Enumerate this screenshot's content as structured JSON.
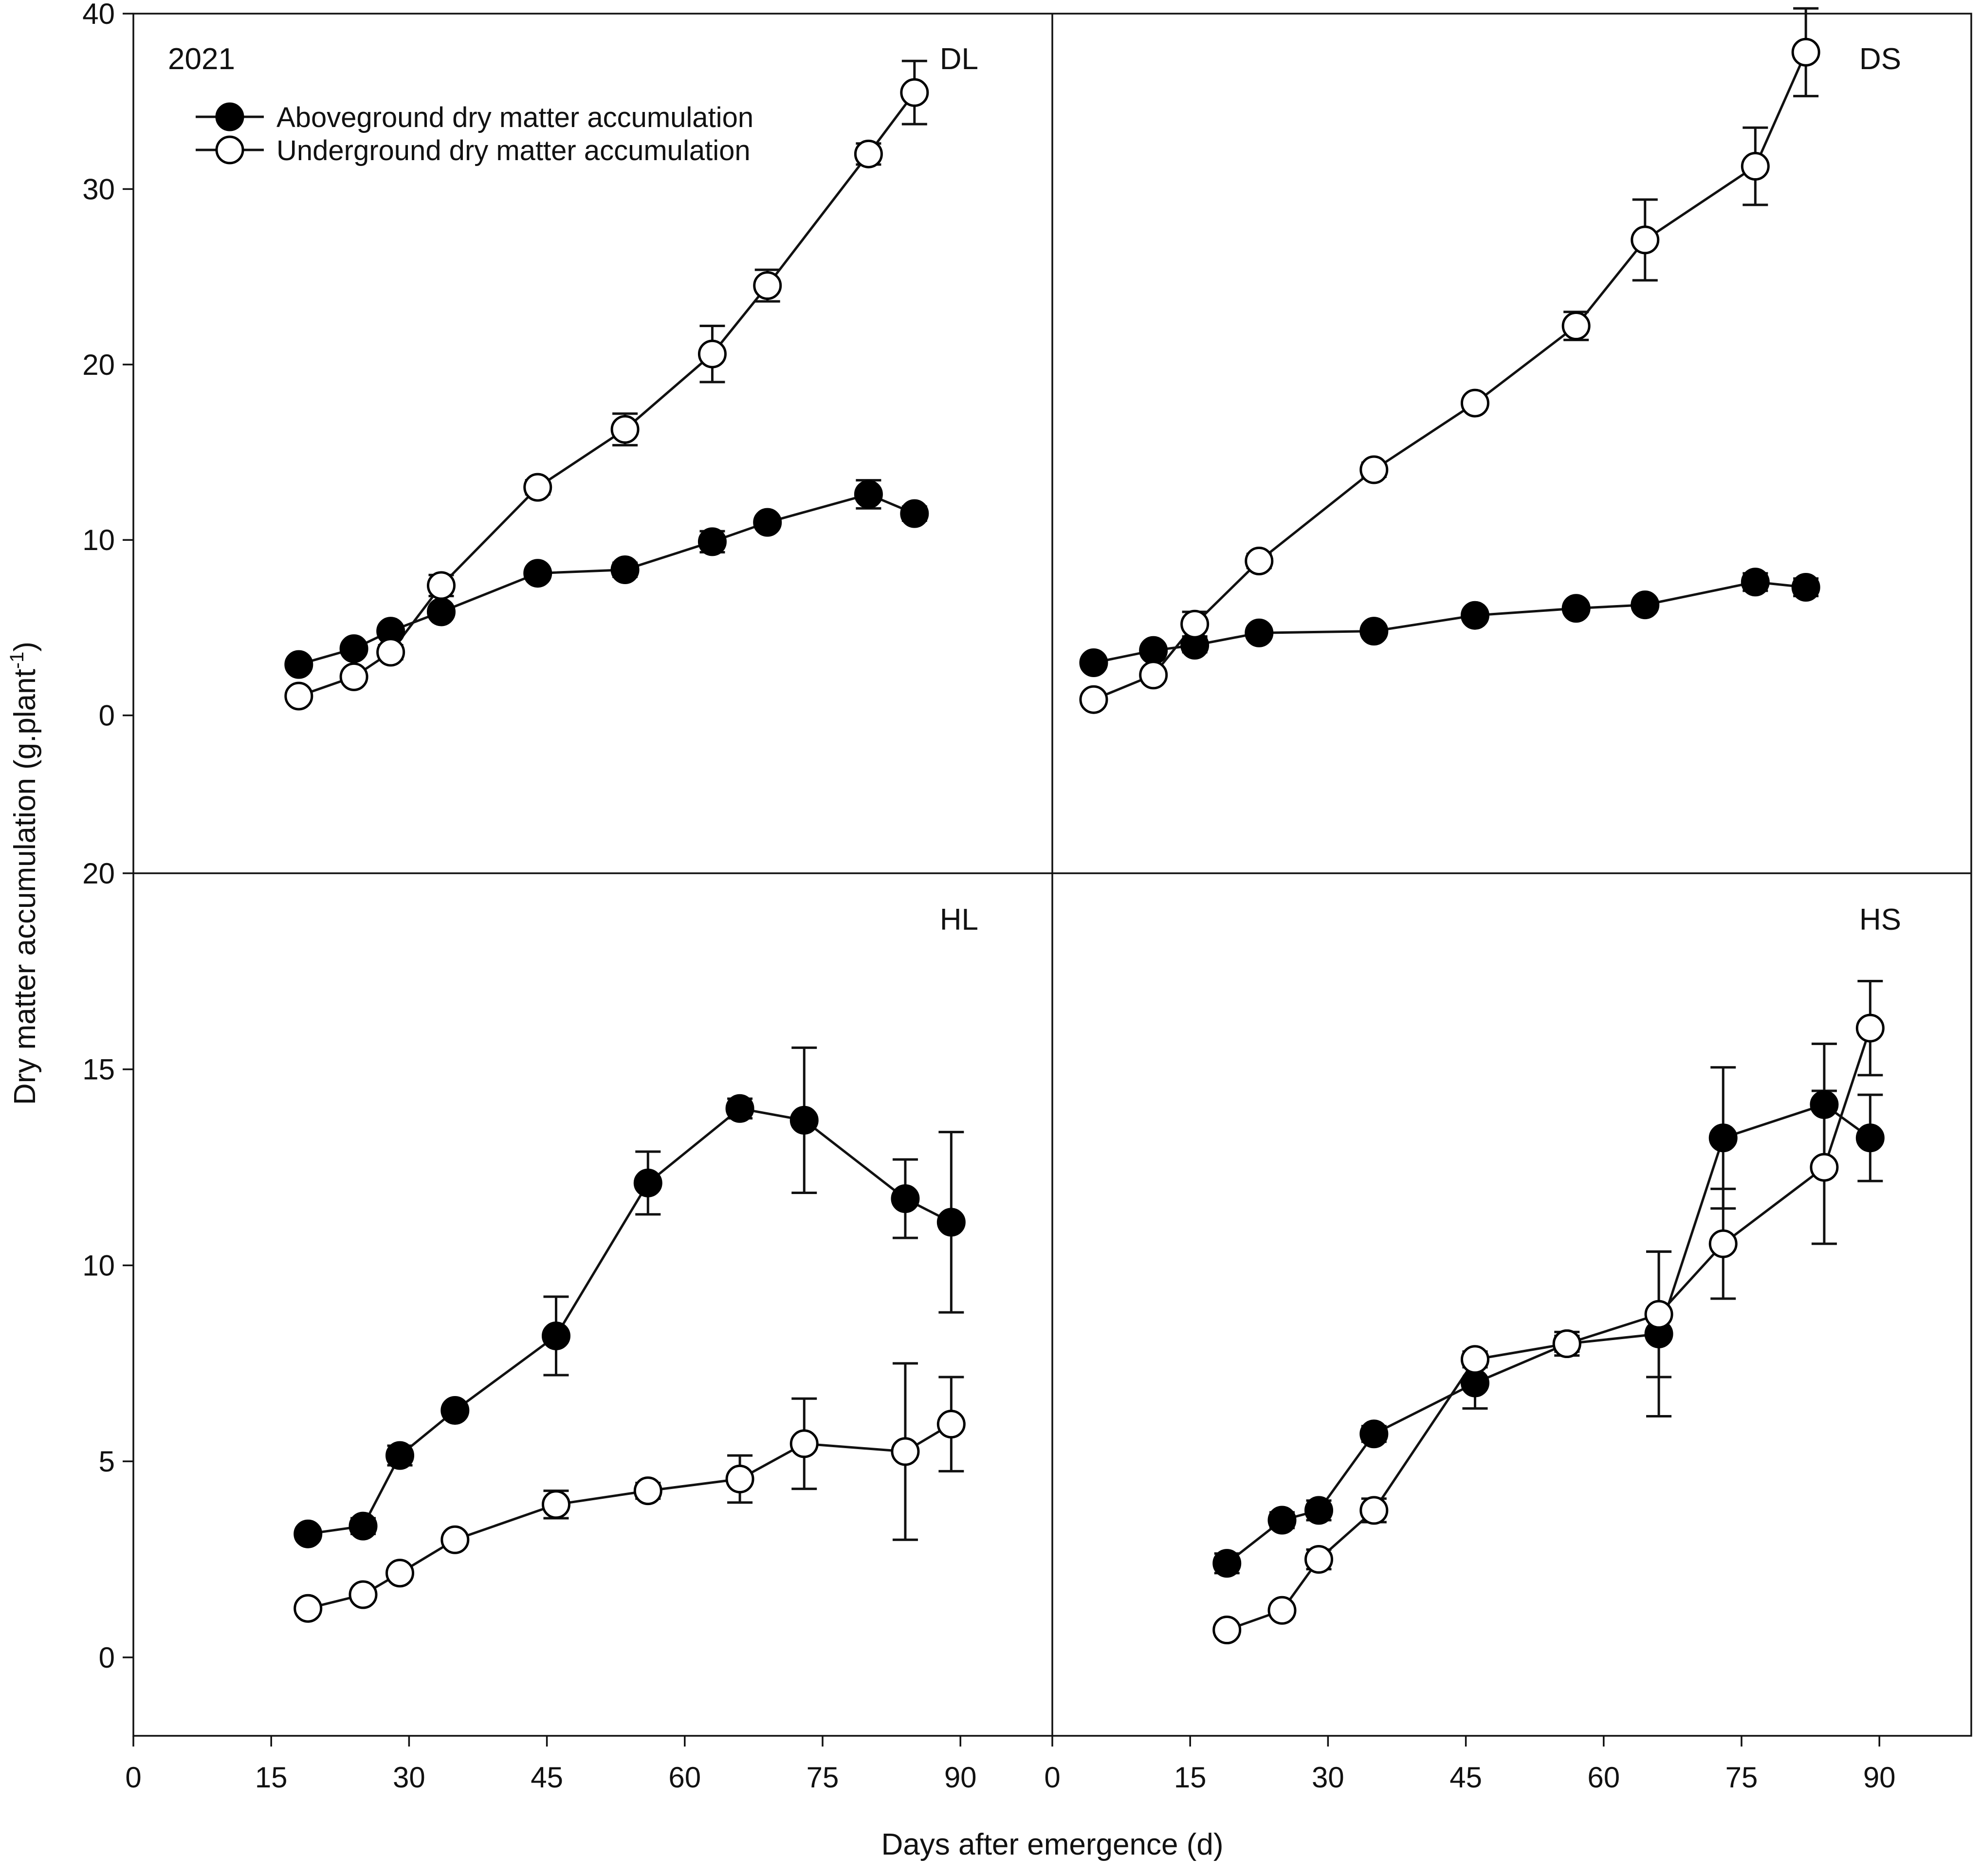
{
  "chart_data": {
    "type": "line",
    "year_label": "2021",
    "xlabel": "Days after emergence (d)",
    "ylabel_main": "Dry matter accumulation (g.plant",
    "ylabel_sup": "-1",
    "ylabel_close": ")",
    "xlim": [
      0,
      100
    ],
    "xticks": [
      0,
      15,
      30,
      45,
      60,
      75,
      90
    ],
    "legend": {
      "position": "top-left",
      "entries": [
        {
          "name": "Aboveground dry matter accumulation",
          "marker": "filled-circle"
        },
        {
          "name": "Underground dry matter accumulation",
          "marker": "open-circle"
        }
      ]
    },
    "panels": [
      {
        "id": "DL",
        "label": "DL",
        "row": "top",
        "col": "left",
        "ylim": [
          -9,
          40
        ],
        "yticks": [
          0,
          10,
          20,
          30,
          40
        ],
        "series": [
          {
            "name": "Aboveground dry matter accumulation",
            "marker": "filled",
            "x": [
              18,
              24,
              28,
              33.5,
              44,
              53.5,
              63,
              69,
              80,
              85
            ],
            "y": [
              2.9,
              3.8,
              4.8,
              5.9,
              8.1,
              8.3,
              9.9,
              11.0,
              12.6,
              11.5
            ],
            "err": [
              0.3,
              0.3,
              0.3,
              0.3,
              0.3,
              0.4,
              0.6,
              0.3,
              0.8,
              0.4
            ]
          },
          {
            "name": "Underground dry matter accumulation",
            "marker": "open",
            "x": [
              18,
              24,
              28,
              33.5,
              44,
              53.5,
              63,
              69,
              80,
              85
            ],
            "y": [
              1.1,
              2.2,
              3.6,
              7.4,
              13.0,
              16.3,
              20.6,
              24.5,
              32.0,
              35.5
            ],
            "err": [
              0.3,
              0.3,
              0.4,
              0.6,
              0.4,
              0.9,
              1.6,
              0.9,
              0.6,
              1.8
            ]
          }
        ]
      },
      {
        "id": "DS",
        "label": "DS",
        "row": "top",
        "col": "right",
        "ylim": [
          -9,
          40
        ],
        "yticks": [
          0,
          10,
          20,
          30,
          40
        ],
        "series": [
          {
            "name": "Aboveground dry matter accumulation",
            "marker": "filled",
            "x": [
              4.5,
              11,
              15.5,
              22.5,
              35,
              46,
              57,
              64.5,
              76.5,
              82
            ],
            "y": [
              3.0,
              3.7,
              4.0,
              4.7,
              4.8,
              5.7,
              6.1,
              6.3,
              7.6,
              7.3
            ],
            "err": [
              0.3,
              0.3,
              0.4,
              0.3,
              0.3,
              0.3,
              0.3,
              0.3,
              0.5,
              0.5
            ]
          },
          {
            "name": "Underground dry matter accumulation",
            "marker": "open",
            "x": [
              4.5,
              11,
              15.5,
              22.5,
              35,
              46,
              57,
              64.5,
              76.5,
              82
            ],
            "y": [
              0.9,
              2.3,
              5.2,
              8.8,
              14.0,
              17.8,
              22.2,
              27.1,
              31.3,
              37.8
            ],
            "err": [
              0.2,
              0.3,
              0.7,
              0.4,
              0.4,
              0.3,
              0.8,
              2.3,
              2.2,
              2.5
            ]
          }
        ]
      },
      {
        "id": "HL",
        "label": "HL",
        "row": "bottom",
        "col": "left",
        "ylim": [
          -2,
          20
        ],
        "yticks": [
          0,
          5,
          10,
          15,
          20
        ],
        "series": [
          {
            "name": "Aboveground dry matter accumulation",
            "marker": "filled",
            "x": [
              19,
              25,
              29,
              35,
              46,
              56,
              66,
              73,
              84,
              89
            ],
            "y": [
              3.15,
              3.35,
              5.15,
              6.3,
              8.2,
              12.1,
              14.0,
              13.7,
              11.7,
              11.1
            ],
            "err": [
              0.15,
              0.2,
              0.25,
              0.15,
              1.0,
              0.8,
              0.25,
              1.85,
              1.0,
              2.3
            ]
          },
          {
            "name": "Underground dry matter accumulation",
            "marker": "open",
            "x": [
              19,
              25,
              29,
              35,
              46,
              56,
              66,
              73,
              84,
              89
            ],
            "y": [
              1.25,
              1.6,
              2.15,
              3.0,
              3.9,
              4.25,
              4.55,
              5.45,
              5.25,
              5.95
            ],
            "err": [
              0.1,
              0.1,
              0.15,
              0.15,
              0.35,
              0.2,
              0.6,
              1.15,
              2.25,
              1.2
            ]
          }
        ]
      },
      {
        "id": "HS",
        "label": "HS",
        "row": "bottom",
        "col": "right",
        "ylim": [
          -2,
          20
        ],
        "yticks": [
          0,
          5,
          10,
          15,
          20
        ],
        "series": [
          {
            "name": "Aboveground dry matter accumulation",
            "marker": "filled",
            "x": [
              19,
              25,
              29,
              35,
              46,
              56,
              66,
              73,
              84,
              89
            ],
            "y": [
              2.4,
              3.5,
              3.75,
              5.7,
              7.0,
              8.0,
              8.25,
              13.25,
              14.1,
              13.25
            ],
            "err": [
              0.25,
              0.2,
              0.25,
              0.2,
              0.65,
              0.2,
              2.1,
              1.8,
              1.55,
              1.1
            ]
          },
          {
            "name": "Underground dry matter accumulation",
            "marker": "open",
            "x": [
              19,
              25,
              29,
              35,
              46,
              56,
              66,
              73,
              84,
              89
            ],
            "y": [
              0.7,
              1.2,
              2.5,
              3.75,
              7.6,
              8.0,
              8.75,
              10.55,
              12.5,
              16.05
            ],
            "err": [
              0.1,
              0.15,
              0.25,
              0.3,
              0.2,
              0.3,
              1.6,
              1.4,
              1.95,
              1.2
            ]
          }
        ]
      }
    ]
  }
}
